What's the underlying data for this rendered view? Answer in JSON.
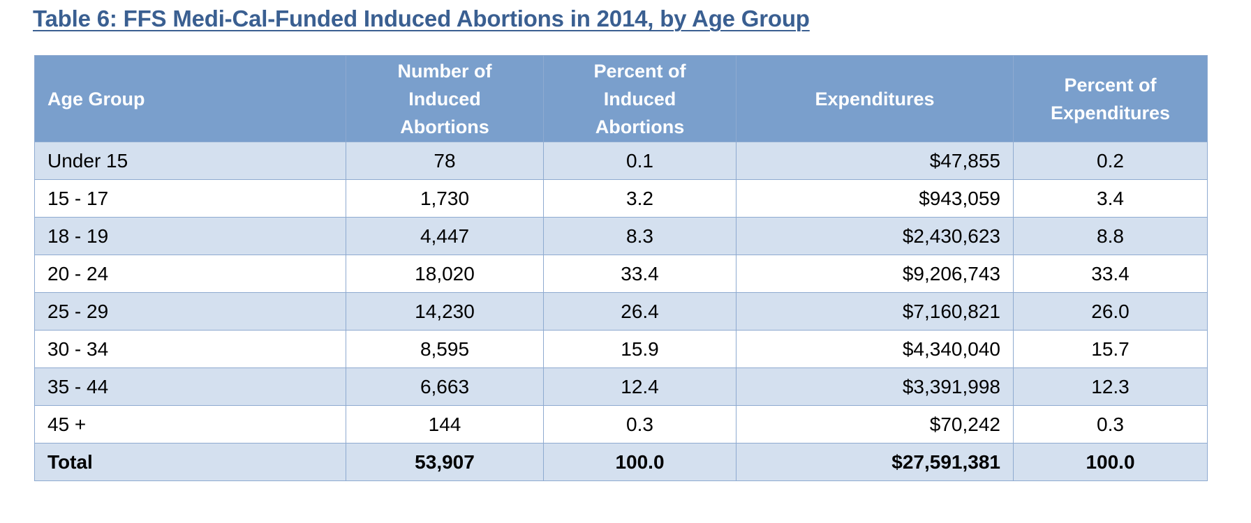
{
  "title": "Table 6:  FFS Medi-Cal-Funded Induced Abortions in 2014, by Age Group",
  "columns": [
    {
      "lines": [
        "Age Group"
      ]
    },
    {
      "lines": [
        "Number of",
        "Induced",
        "Abortions"
      ]
    },
    {
      "lines": [
        "Percent of",
        "Induced",
        "Abortions"
      ]
    },
    {
      "lines": [
        "Expenditures"
      ]
    },
    {
      "lines": [
        "Percent of",
        "Expenditures"
      ]
    }
  ],
  "rows": [
    [
      "Under 15",
      "78",
      "0.1",
      "$47,855",
      "0.2"
    ],
    [
      "15 - 17",
      "1,730",
      "3.2",
      "$943,059",
      "3.4"
    ],
    [
      "18 - 19",
      "4,447",
      "8.3",
      "$2,430,623",
      "8.8"
    ],
    [
      "20 - 24",
      "18,020",
      "33.4",
      "$9,206,743",
      "33.4"
    ],
    [
      "25 - 29",
      "14,230",
      "26.4",
      "$7,160,821",
      "26.0"
    ],
    [
      "30 - 34",
      "8,595",
      "15.9",
      "$4,340,040",
      "15.7"
    ],
    [
      "35 - 44",
      "6,663",
      "12.4",
      "$3,391,998",
      "12.3"
    ],
    [
      "45 +",
      "144",
      "0.3",
      "$70,242",
      "0.3"
    ]
  ],
  "total": [
    "Total",
    "53,907",
    "100.0",
    "$27,591,381",
    "100.0"
  ],
  "colors": {
    "title": "#3a5f91",
    "header_bg": "#7a9fcc",
    "header_text": "#ffffff",
    "band_row": "#d4e0ef",
    "plain_row": "#ffffff",
    "border": "#8eaad0"
  }
}
